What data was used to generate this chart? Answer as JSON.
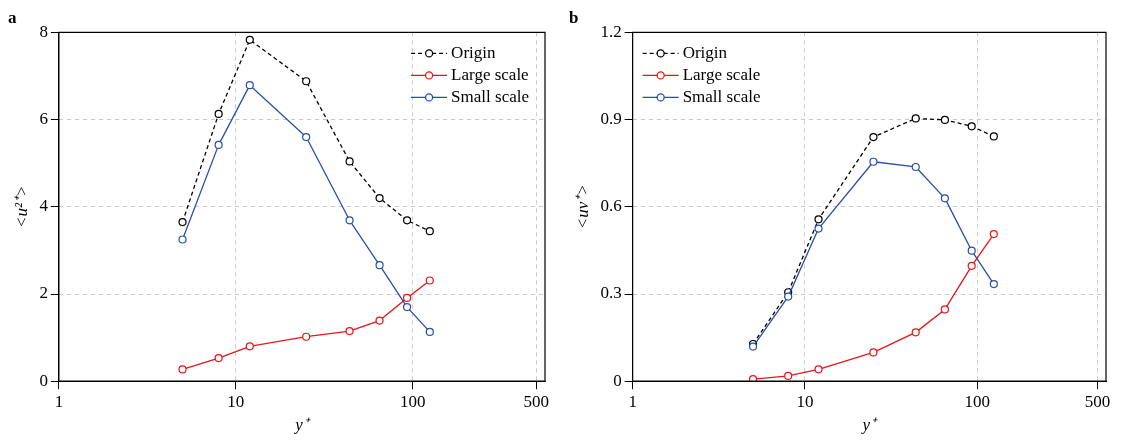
{
  "chart_data": [
    {
      "type": "line",
      "title": "a",
      "xlabel": "y⁺",
      "ylabel": "<u²⁺>",
      "log": "x",
      "grid": true,
      "legend": "top right",
      "marker": "circle",
      "x": [
        5,
        8,
        12,
        25,
        44,
        65,
        93,
        125
      ],
      "xlim": [
        1,
        560
      ],
      "xticks": [
        1,
        10,
        100,
        500
      ],
      "ylim": [
        0,
        8
      ],
      "yticks": [
        0,
        2,
        4,
        6,
        8
      ],
      "series": [
        {
          "name": "Origin",
          "color": "#000000",
          "line_style": "dashed",
          "values": [
            3.65,
            6.13,
            7.83,
            6.88,
            5.04,
            4.2,
            3.69,
            3.44
          ]
        },
        {
          "name": "Large scale",
          "color": "#e8141a",
          "line_style": "solid",
          "values": [
            0.27,
            0.53,
            0.8,
            1.02,
            1.15,
            1.39,
            1.91,
            2.31
          ]
        },
        {
          "name": "Small scale",
          "color": "#2a4ea6",
          "line_style": "solid",
          "values": [
            3.25,
            5.42,
            6.79,
            5.6,
            3.69,
            2.66,
            1.7,
            1.13
          ]
        }
      ]
    },
    {
      "type": "line",
      "title": "b",
      "xlabel": "y⁺",
      "ylabel": "<uv⁺>",
      "log": "x",
      "grid": true,
      "legend": "top left",
      "marker": "circle",
      "x": [
        5,
        8,
        12,
        25,
        44,
        65,
        93,
        125
      ],
      "xlim": [
        1,
        560
      ],
      "xticks": [
        1,
        10,
        100,
        500
      ],
      "ylim": [
        0,
        1.2
      ],
      "yticks": [
        0,
        0.3,
        0.6,
        0.9,
        1.2
      ],
      "series": [
        {
          "name": "Origin",
          "color": "#000000",
          "line_style": "dashed",
          "values": [
            0.128,
            0.306,
            0.557,
            0.84,
            0.904,
            0.899,
            0.877,
            0.842
          ]
        },
        {
          "name": "Large scale",
          "color": "#e8141a",
          "line_style": "solid",
          "values": [
            0.007,
            0.018,
            0.041,
            0.099,
            0.168,
            0.247,
            0.397,
            0.506
          ]
        },
        {
          "name": "Small scale",
          "color": "#2a4ea6",
          "line_style": "solid",
          "values": [
            0.119,
            0.291,
            0.525,
            0.755,
            0.737,
            0.629,
            0.449,
            0.334
          ]
        }
      ]
    }
  ]
}
